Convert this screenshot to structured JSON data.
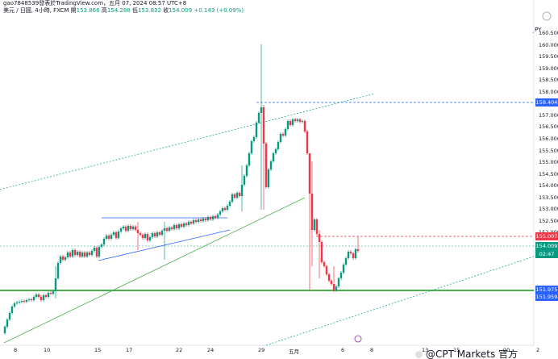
{
  "header": {
    "line1": "gao7848539發表於TradingView.com，五月 07, 2024 08:57 UTC+8",
    "symbol": "美元 / 日圓, 4小時, FXCM",
    "open_label": "開",
    "open": "153.866",
    "high_label": "高",
    "high": "154.288",
    "low_label": "低",
    "low": "153.832",
    "close_label": "收",
    "close": "154.009",
    "change": "+0.143 (+0.09%)"
  },
  "currency": "JPY",
  "y_axis": [
    "160.500",
    "160.000",
    "159.500",
    "159.000",
    "158.500",
    "158.000",
    "157.500",
    "157.000",
    "156.500",
    "156.000",
    "155.500",
    "155.000",
    "154.500",
    "154.000",
    "153.500",
    "153.000",
    "152.500",
    "152.000",
    "151.500"
  ],
  "price_tags": [
    {
      "label": "158.404",
      "color": "#2962ff"
    },
    {
      "label": "155.007",
      "color": "#f23645"
    },
    {
      "label": "154.009",
      "color": "#089981"
    },
    {
      "label": "02:47",
      "color": "#089981"
    },
    {
      "label": "151.975",
      "color": "#2962ff"
    },
    {
      "label": "151.959",
      "color": "#2962ff"
    }
  ],
  "x_axis": [
    "8",
    "10",
    "15",
    "17",
    "22",
    "24",
    "29",
    "五月",
    "6",
    "8",
    "13",
    "15",
    "20",
    "2"
  ],
  "watermark": "@CPT Markets 官方",
  "colors": {
    "up": "#089981",
    "down": "#f23645",
    "line_blue": "#2962ff",
    "line_green": "#4caf50"
  }
}
